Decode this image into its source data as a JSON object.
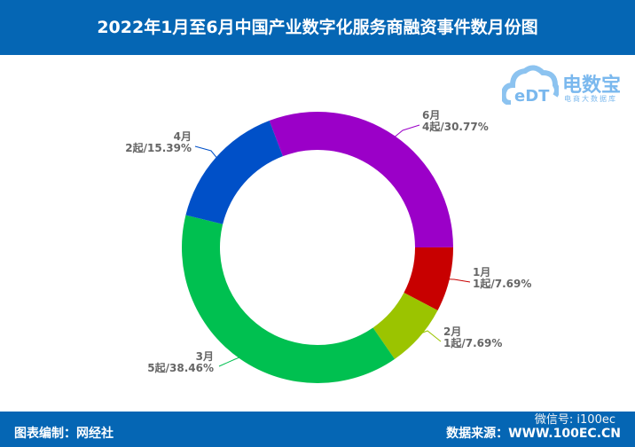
{
  "header": {
    "title": "2022年1月至6月中国产业数字化服务商融资事件数月份图"
  },
  "logo": {
    "name": "电数宝",
    "subtitle": "电商大数据库",
    "mark": "eDT"
  },
  "footer": {
    "editor": "图表编制：网经社",
    "source": "数据来源：WWW.100EC.CN",
    "wechat": "微信号: i100ec"
  },
  "chart_data": {
    "type": "pie",
    "variant": "donut",
    "title": "2022年1月至6月中国产业数字化服务商融资事件数月份图",
    "slices": [
      {
        "label": "6月",
        "count": 4,
        "text": "4起/30.77%",
        "percent": 30.77,
        "color": "#9b00c8"
      },
      {
        "label": "1月",
        "count": 1,
        "text": "1起/7.69%",
        "percent": 7.69,
        "color": "#c80000"
      },
      {
        "label": "2月",
        "count": 1,
        "text": "1起/7.69%",
        "percent": 7.69,
        "color": "#9bc400"
      },
      {
        "label": "3月",
        "count": 5,
        "text": "5起/38.46%",
        "percent": 38.46,
        "color": "#00c050"
      },
      {
        "label": "4月",
        "count": 2,
        "text": "2起/15.39%",
        "percent": 15.39,
        "color": "#0050c8"
      }
    ]
  }
}
